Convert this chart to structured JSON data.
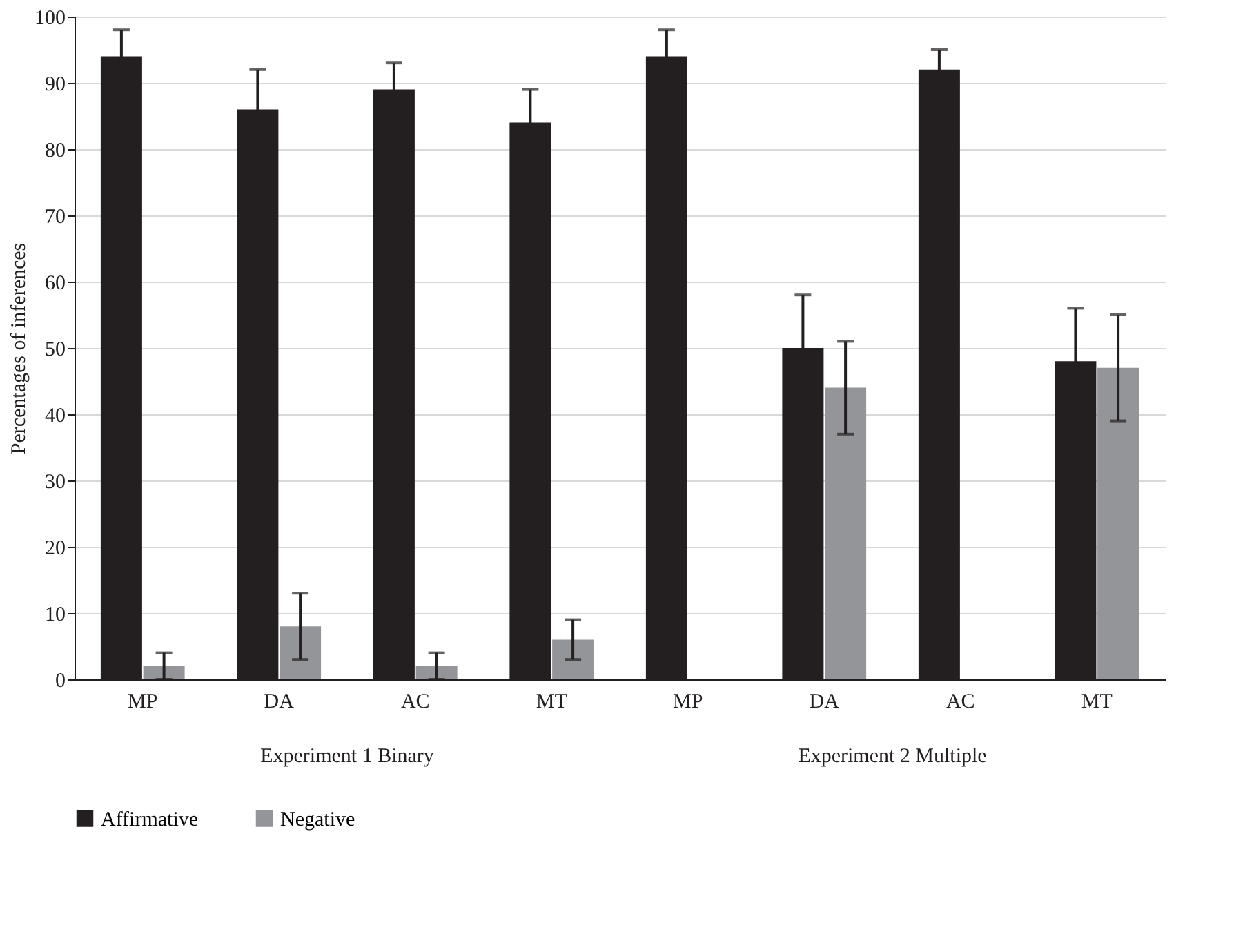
{
  "chart_data": {
    "type": "bar",
    "ylabel": "Percentages of inferences",
    "categories": [
      "MP",
      "DA",
      "AC",
      "MT",
      "MP",
      "DA",
      "AC",
      "MT"
    ],
    "series": [
      {
        "name": "Affirmative",
        "color": "#231f20",
        "values": [
          94,
          86,
          89,
          84,
          94,
          50,
          92,
          48
        ],
        "errors": [
          4,
          6,
          4,
          5,
          4,
          8,
          3,
          8
        ]
      },
      {
        "name": "Negative",
        "color": "#939598",
        "values": [
          2,
          8,
          2,
          6,
          null,
          44,
          null,
          47
        ],
        "errors": [
          2,
          5,
          2,
          3,
          null,
          7,
          null,
          8
        ]
      }
    ],
    "annotations": [
      "Experiment 1 Binary",
      "Experiment 2 Multiple"
    ],
    "ylim": [
      0,
      100
    ],
    "yticks": [
      0,
      10,
      20,
      30,
      40,
      50,
      60,
      70,
      80,
      90,
      100
    ],
    "grid": "y",
    "legend": "bottom"
  }
}
